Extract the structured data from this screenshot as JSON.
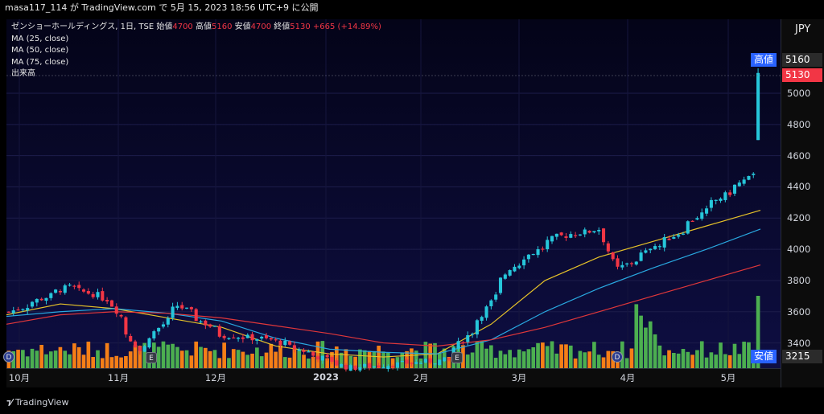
{
  "header": {
    "author_line": "masa117_114 が TradingView.com で 5月 15, 2023 18:56 UTC+9 に公開"
  },
  "legend": {
    "symbol": "ゼンショーホールディングス, 1日, TSE",
    "open_label": "始値",
    "open": "4700",
    "high_label": "高値",
    "high": "5160",
    "low_label": "安値",
    "low": "4700",
    "close_label": "終値",
    "close": "5130",
    "change": "+665 (+14.89%)",
    "ma1": "MA (25, close)",
    "ma2": "MA (50, close)",
    "ma3": "MA (75, close)",
    "volume": "出来高"
  },
  "currency": "JPY",
  "price_tags": {
    "high_label": "高値",
    "high_value": "5160",
    "last_value": "5130",
    "low_label": "安値",
    "low_value": "3215"
  },
  "badges": {
    "earnings": "E",
    "dividend": "D"
  },
  "branding": {
    "logo_text": "TradingView"
  },
  "colors": {
    "up": "#26c6da",
    "down": "#f23645",
    "ma25": "#e6c229",
    "ma50": "#29a8e0",
    "ma75": "#e0373a",
    "vol_up": "#4caf50",
    "vol_down": "#f57f17"
  },
  "chart_data": {
    "type": "candlestick",
    "title": "ゼンショーホールディングス, 1日, TSE",
    "y_ticks": [
      3400,
      3600,
      3800,
      4000,
      4200,
      4400,
      4600,
      4800,
      5000
    ],
    "ylim": [
      3215,
      5160
    ],
    "x_labels": [
      "10月",
      "11月",
      "12月",
      "2023",
      "2月",
      "3月",
      "4月",
      "5月"
    ],
    "ohlc_anchors": [
      {
        "date": "2022-10-01",
        "close": 3580
      },
      {
        "date": "2022-10-20",
        "close": 3760
      },
      {
        "date": "2022-11-01",
        "close": 3680
      },
      {
        "date": "2022-11-10",
        "close": 3350
      },
      {
        "date": "2022-11-22",
        "close": 3640
      },
      {
        "date": "2022-12-05",
        "close": 3450
      },
      {
        "date": "2022-12-20",
        "close": 3420
      },
      {
        "date": "2023-01-12",
        "close": 3240
      },
      {
        "date": "2023-02-10",
        "close": 3290
      },
      {
        "date": "2023-02-20",
        "close": 3550
      },
      {
        "date": "2023-03-01",
        "close": 3880
      },
      {
        "date": "2023-03-15",
        "close": 4080
      },
      {
        "date": "2023-03-28",
        "close": 4130
      },
      {
        "date": "2023-04-01",
        "close": 3850
      },
      {
        "date": "2023-04-20",
        "close": 4100
      },
      {
        "date": "2023-05-01",
        "close": 4300
      },
      {
        "date": "2023-05-12",
        "close": 4470
      },
      {
        "date": "2023-05-15",
        "open": 4700,
        "high": 5160,
        "low": 4700,
        "close": 5130
      }
    ],
    "series": [
      {
        "name": "MA (25, close)",
        "values": [
          3580,
          3650,
          3620,
          3560,
          3500,
          3380,
          3330,
          3310,
          3330,
          3520,
          3800,
          3950,
          4050,
          4150,
          4250
        ]
      },
      {
        "name": "MA (50, close)",
        "values": [
          3570,
          3600,
          3620,
          3590,
          3540,
          3430,
          3360,
          3340,
          3330,
          3420,
          3600,
          3750,
          3880,
          4000,
          4130
        ]
      },
      {
        "name": "MA (75, close)",
        "values": [
          3520,
          3580,
          3600,
          3590,
          3560,
          3510,
          3460,
          3400,
          3380,
          3420,
          3500,
          3600,
          3700,
          3800,
          3900
        ]
      }
    ]
  }
}
